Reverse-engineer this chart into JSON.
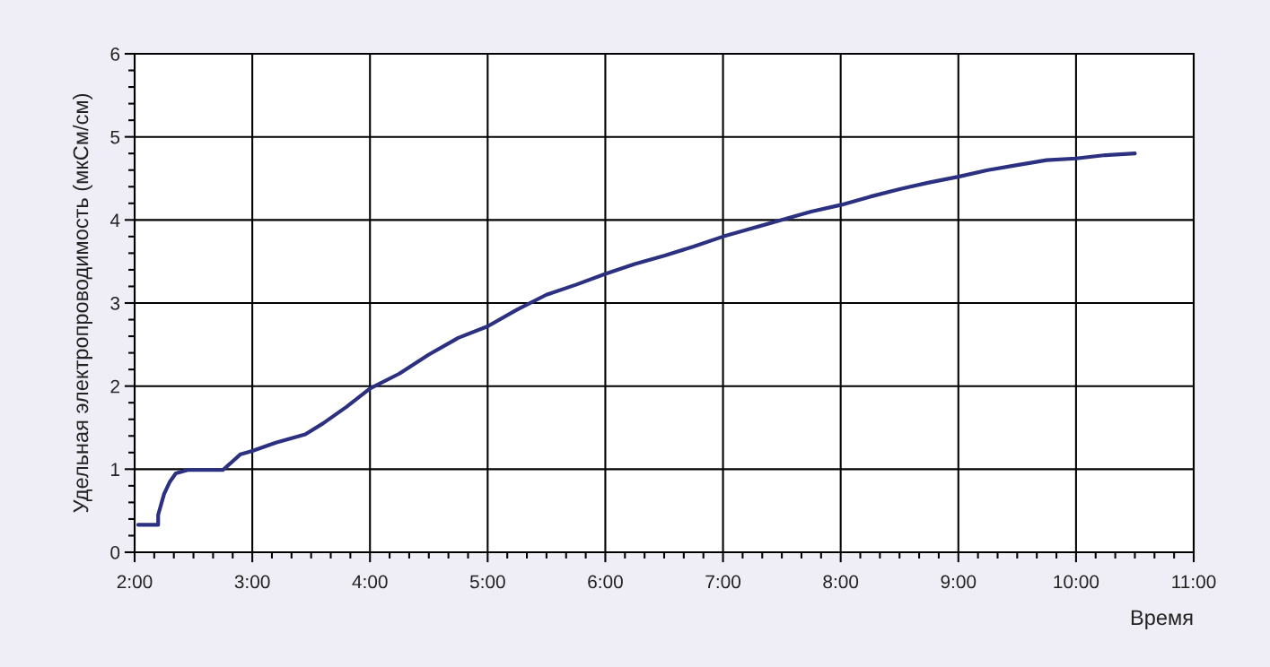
{
  "chart_data": {
    "type": "line",
    "xlabel": "Время",
    "ylabel": "Удельная электропроводимость (мкСм/см)",
    "xlim": [
      2,
      11
    ],
    "ylim": [
      0,
      6
    ],
    "yticks": [
      0,
      1,
      2,
      3,
      4,
      5,
      6
    ],
    "xticks": [
      {
        "value": 2,
        "label": "2:00"
      },
      {
        "value": 3,
        "label": "3:00"
      },
      {
        "value": 4,
        "label": "4:00"
      },
      {
        "value": 5,
        "label": "5:00"
      },
      {
        "value": 6,
        "label": "6:00"
      },
      {
        "value": 7,
        "label": "7:00"
      },
      {
        "value": 8,
        "label": "8:00"
      },
      {
        "value": 9,
        "label": "9:00"
      },
      {
        "value": 10,
        "label": "10:00"
      },
      {
        "value": 11,
        "label": "11:00"
      }
    ],
    "grid": true,
    "marker": "none",
    "line_style": "solid",
    "series": [
      {
        "color": "#2b3080",
        "x": [
          2.03,
          2.2,
          2.2,
          2.25,
          2.3,
          2.35,
          2.45,
          2.75,
          2.9,
          3.0,
          3.2,
          3.45,
          3.6,
          3.8,
          4.0,
          4.25,
          4.5,
          4.75,
          5.0,
          5.25,
          5.5,
          5.75,
          6.0,
          6.25,
          6.5,
          6.75,
          7.0,
          7.25,
          7.5,
          7.75,
          8.0,
          8.25,
          8.5,
          8.75,
          9.0,
          9.25,
          9.5,
          9.75,
          10.0,
          10.25,
          10.5
        ],
        "values": [
          0.33,
          0.33,
          0.45,
          0.7,
          0.85,
          0.95,
          0.99,
          0.99,
          1.18,
          1.22,
          1.32,
          1.42,
          1.55,
          1.75,
          1.97,
          2.15,
          2.38,
          2.58,
          2.72,
          2.92,
          3.1,
          3.22,
          3.35,
          3.47,
          3.57,
          3.68,
          3.8,
          3.9,
          4.0,
          4.1,
          4.18,
          4.28,
          4.37,
          4.45,
          4.52,
          4.6,
          4.66,
          4.72,
          4.74,
          4.78,
          4.8
        ]
      }
    ]
  }
}
